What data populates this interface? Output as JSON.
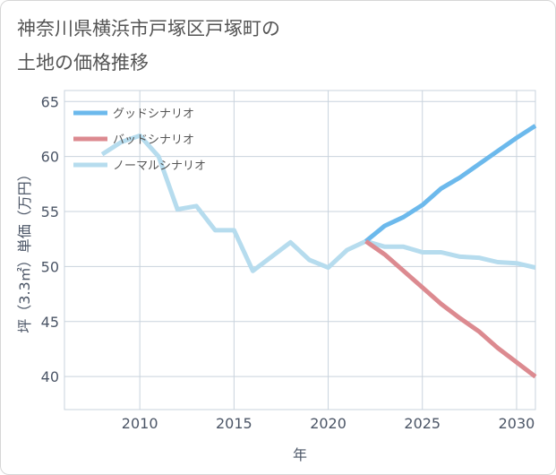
{
  "chart_data": {
    "type": "line",
    "title": "神奈川県横浜市戸塚区戸塚町の\n土地の価格推移",
    "xlabel": "年",
    "ylabel": "坪（3.3㎡）単価（万円）",
    "xlim": [
      2006,
      2031
    ],
    "ylim": [
      37,
      66
    ],
    "xticks": [
      2010,
      2015,
      2020,
      2025,
      2030
    ],
    "yticks": [
      40,
      45,
      50,
      55,
      60,
      65
    ],
    "grid": true,
    "legend_position": "top-left",
    "series": [
      {
        "name": "グッドシナリオ",
        "color": "#6cb9ec",
        "x": [
          2022,
          2023,
          2024,
          2025,
          2026,
          2027,
          2028,
          2029,
          2030,
          2031
        ],
        "y": [
          52.3,
          53.7,
          54.5,
          55.6,
          57.1,
          58.1,
          59.3,
          60.5,
          61.7,
          62.8
        ]
      },
      {
        "name": "バッドシナリオ",
        "color": "#dc8a90",
        "x": [
          2022,
          2023,
          2024,
          2025,
          2026,
          2027,
          2028,
          2029,
          2030,
          2031
        ],
        "y": [
          52.3,
          51.1,
          49.6,
          48.1,
          46.6,
          45.3,
          44.1,
          42.6,
          41.3,
          40.0
        ]
      },
      {
        "name": "ノーマルシナリオ",
        "color": "#b6dcee",
        "x": [
          2008,
          2009,
          2010,
          2011,
          2012,
          2013,
          2014,
          2015,
          2016,
          2017,
          2018,
          2019,
          2020,
          2021,
          2022,
          2023,
          2024,
          2025,
          2026,
          2027,
          2028,
          2029,
          2030,
          2031
        ],
        "y": [
          60.2,
          61.3,
          61.9,
          60.0,
          55.2,
          55.5,
          53.3,
          53.3,
          49.6,
          50.9,
          52.2,
          50.6,
          49.9,
          51.5,
          52.3,
          51.8,
          51.8,
          51.3,
          51.3,
          50.9,
          50.8,
          50.4,
          50.3,
          49.9
        ]
      }
    ]
  }
}
